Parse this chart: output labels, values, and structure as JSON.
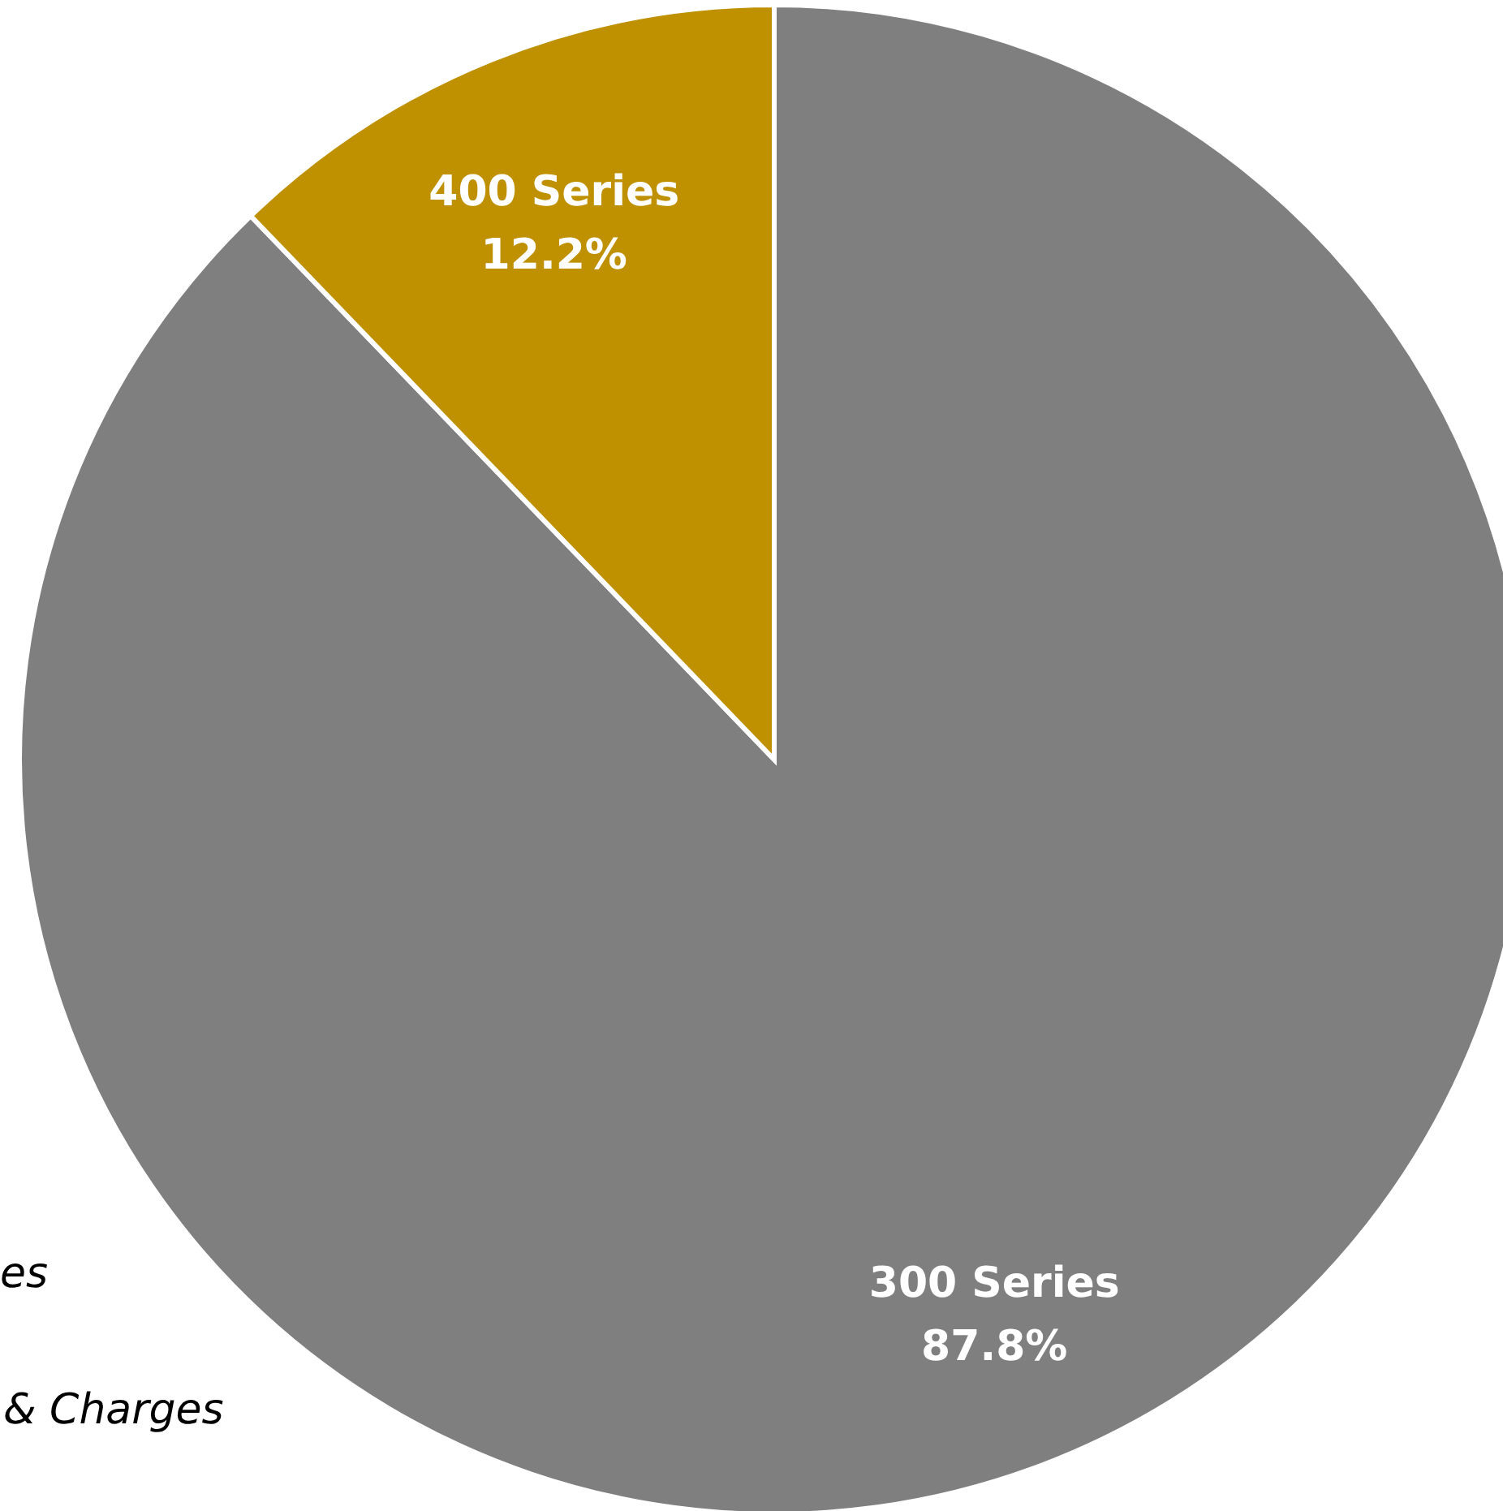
{
  "chart_data": {
    "type": "pie",
    "categories": [
      "300 Series",
      "400 Series"
    ],
    "values": [
      87.8,
      12.2
    ],
    "colors": [
      "#7f7f7f",
      "#bf9000"
    ],
    "value_labels": [
      "87.8%",
      "12.2%"
    ],
    "annotations": [
      "es",
      "& Charges"
    ]
  }
}
